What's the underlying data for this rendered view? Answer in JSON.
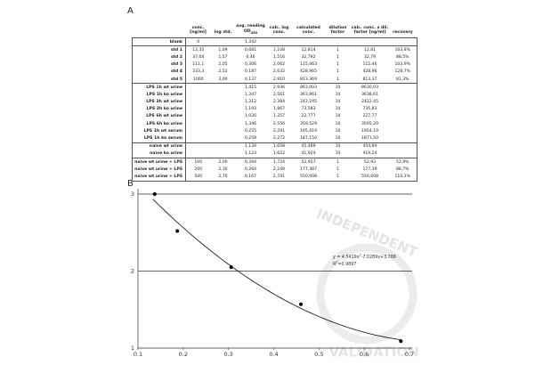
{
  "panels": [
    "A",
    "B"
  ],
  "table": {
    "columns": [
      null,
      "conc. [ng/ml]",
      "log std.",
      {
        "text": "avg. reading OD",
        "sub": "450"
      },
      "calc. log conc.",
      "calculated conc.",
      "dilution factor",
      "calc. conc. x dil. factor [ng/ml]",
      "recovery"
    ],
    "groups": [
      [
        [
          "blank",
          "0",
          null,
          "1,342",
          null,
          null,
          null,
          null,
          null
        ]
      ],
      [
        [
          "std 1",
          "12,35",
          "1,09",
          "0,681",
          "1,108",
          "12,814",
          "1",
          "12,81",
          "103,8%"
        ],
        [
          "std 2",
          "37,04",
          "1,57",
          "0,46",
          "1,516",
          "32,792",
          "1",
          "32,79",
          "88,5%"
        ],
        [
          "std 3",
          "111,1",
          "2,05",
          "0,306",
          "2,062",
          "115,463",
          "1",
          "115,46",
          "103,9%"
        ],
        [
          "std 4",
          "333,3",
          "2,52",
          "0,187",
          "2,632",
          "428,965",
          "1",
          "428,96",
          "128,7%"
        ],
        [
          "std 5",
          "1000",
          "3,00",
          "0,137",
          "2,910",
          "813,369",
          "1",
          "813,37",
          "81,3%"
        ]
      ],
      [
        [
          "LPS 1h wt urine",
          null,
          null,
          "1,415",
          "2,936",
          "863,003",
          "10",
          "8630,03",
          null
        ],
        [
          "LPS 1h ko urine",
          null,
          null,
          "1,347",
          "2,561",
          "363,861",
          "10",
          "3638,61",
          null
        ],
        [
          "LPS 3h wt urine",
          null,
          null,
          "1,312",
          "2,384",
          "242,245",
          "10",
          "2422,45",
          null
        ],
        [
          "LPS 3h ko urine",
          null,
          null,
          "1,193",
          "1,867",
          "73,583",
          "10",
          "735,83",
          null
        ],
        [
          "LPS 6h wt urine",
          null,
          null,
          "1,026",
          "1,357",
          "22,777",
          "10",
          "227,77",
          null
        ],
        [
          "LPS 6h ko urine",
          null,
          null,
          "1,346",
          "2,556",
          "359,529",
          "10",
          "3595,29",
          null
        ],
        [
          "LPS 1h wt serum",
          null,
          null,
          "0,255",
          "2,291",
          "195,419",
          "10",
          "1954,19",
          null
        ],
        [
          "LPS 1h ko serum",
          null,
          null,
          "0,259",
          "2,272",
          "187,150",
          "10",
          "1871,50",
          null
        ]
      ],
      [
        [
          "naive wt urine",
          null,
          null,
          "1,134",
          "1,658",
          "45,489",
          "10",
          "454,89",
          null
        ],
        [
          "naive ko urine",
          null,
          null,
          "1,123",
          "1,622",
          "41,924",
          "10",
          "419,24",
          null
        ]
      ],
      [
        [
          "naive wt urine + LPS",
          "100",
          "2,00",
          "0,394",
          "1,724",
          "52,927",
          "1",
          "52,93",
          "52,9%"
        ],
        [
          "naive wt urine + LPS",
          "200",
          "2,30",
          "0,264",
          "2,249",
          "177,387",
          "1",
          "177,39",
          "88,7%"
        ],
        [
          "naive wt urine + LPS",
          "500",
          "2,70",
          "0,167",
          "2,741",
          "550,608",
          "1",
          "550,608",
          "110,1%"
        ]
      ]
    ]
  },
  "chart_data": {
    "type": "scatter",
    "x": [
      0.137,
      0.187,
      0.306,
      0.46,
      0.681
    ],
    "values": [
      3.0,
      2.52,
      2.05,
      1.57,
      1.09
    ],
    "color": "#000000",
    "xlim": [
      0.1,
      0.7
    ],
    "xticks": [
      0.1,
      0.2,
      0.3,
      0.4,
      0.5,
      0.6,
      0.7
    ],
    "ylim": [
      1,
      3
    ],
    "yticks": [
      1,
      2,
      3
    ],
    "grid": true,
    "fit": {
      "coefficients": [
        4.5419,
        -7.0289,
        3.788
      ]
    },
    "equation": [
      "y = 4.5419x",
      "2",
      "-7.0289x+3.788"
    ],
    "r_squared": [
      "R",
      "2",
      "=0.9897"
    ],
    "watermark": [
      "INDEPENDENT",
      "VALIDATION"
    ]
  }
}
